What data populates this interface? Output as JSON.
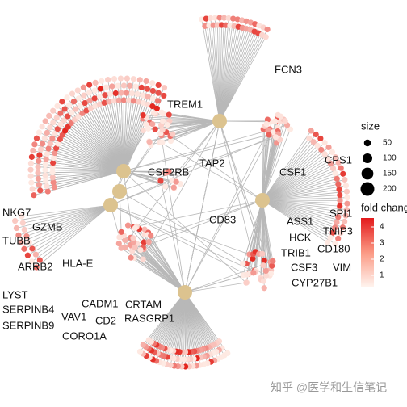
{
  "labels": [
    "FCN3",
    "TREM1",
    "TAP2",
    "CSF2RB",
    "CSF1",
    "CPS1",
    "SPI1",
    "ASS1",
    "TNIP3",
    "HCK",
    "CD180",
    "TRIB1",
    "CSF3",
    "VIM",
    "CYP27B1",
    "CD83",
    "NKG7",
    "GZMB",
    "TUBB",
    "ARRB2",
    "HLA-E",
    "LYST",
    "SERPINB4",
    "VAV1",
    "SERPINB9",
    "CORO1A",
    "CADM1",
    "CRTAM",
    "CD2",
    "RASGRP1"
  ],
  "size_legend": {
    "title": "size",
    "ticks": [
      50,
      100,
      150,
      200
    ]
  },
  "color_legend": {
    "title": "fold change",
    "ticks": [
      1,
      2,
      3,
      4
    ]
  },
  "watermark": "知乎 @医学和生信笔记"
}
